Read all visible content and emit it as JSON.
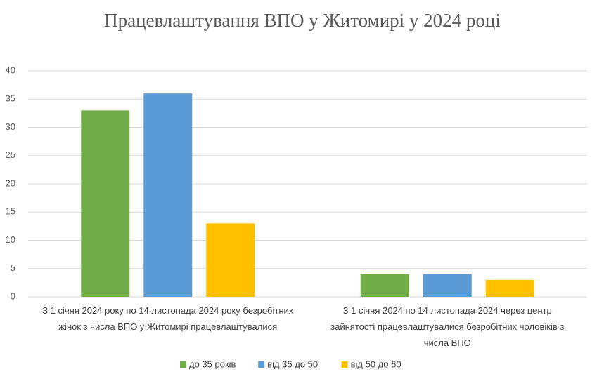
{
  "chart_data": {
    "type": "bar",
    "title": "Працевлаштування ВПО у Житомирі у 2024 році",
    "categories": [
      "З 1 січня 2024 року  по 14 листопада 2024 року безробітних жінок з числа ВПО у Житомирі працевлаштувалися",
      "З 1 січня 2024 по 14 листопада 2024 через центр зайнятості працевлаштувалися безробітних чоловіків з числа ВПО"
    ],
    "series": [
      {
        "name": "до 35 років",
        "color": "#70ad47",
        "values": [
          33,
          4
        ]
      },
      {
        "name": "від 35 до 50",
        "color": "#5b9bd5",
        "values": [
          36,
          4
        ]
      },
      {
        "name": "від 50 до 60",
        "color": "#ffc000",
        "values": [
          13,
          3
        ]
      }
    ],
    "ylim": [
      0,
      40
    ],
    "yticks": [
      0,
      5,
      10,
      15,
      20,
      25,
      30,
      35,
      40
    ],
    "grid": true,
    "legend": "bottom"
  }
}
